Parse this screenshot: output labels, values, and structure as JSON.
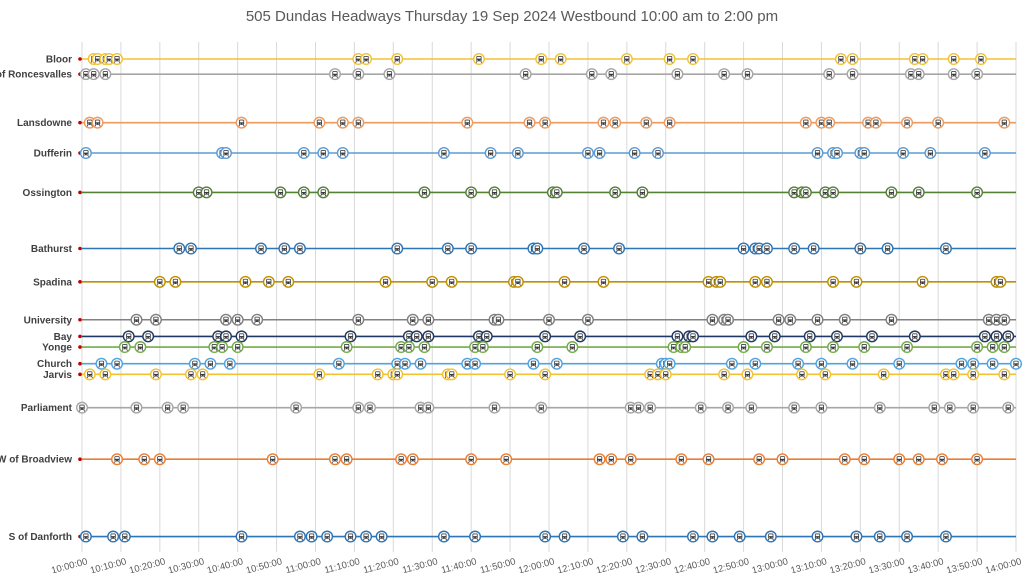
{
  "chart_data": {
    "type": "scatter",
    "title": "505 Dundas Headways Thursday 19 Sep 2024 Westbound 10:00 am to 2:00 pm",
    "x_range": [
      "10:00:00",
      "14:00:00"
    ],
    "x_ticks": [
      "10:00:00",
      "10:10:00",
      "10:20:00",
      "10:30:00",
      "10:40:00",
      "10:50:00",
      "11:00:00",
      "11:10:00",
      "11:20:00",
      "11:30:00",
      "11:40:00",
      "11:50:00",
      "12:00:00",
      "12:10:00",
      "12:20:00",
      "12:30:00",
      "12:40:00",
      "12:50:00",
      "13:00:00",
      "13:10:00",
      "13:20:00",
      "13:30:00",
      "13:40:00",
      "13:50:00",
      "14:00:00"
    ],
    "grid": "vertical",
    "marker": "streetcar",
    "series": [
      {
        "name": "Bloor",
        "level": 0.0,
        "color": "#f2c233",
        "times": [
          "10:03",
          "10:04",
          "10:06",
          "10:07",
          "10:09",
          "11:11",
          "11:13",
          "11:21",
          "11:42",
          "11:58",
          "12:03",
          "12:20",
          "12:31",
          "12:37",
          "13:15",
          "13:18",
          "13:34",
          "13:36",
          "13:44",
          "13:51"
        ]
      },
      {
        "name": "E of Roncesvalles",
        "level": 1.0,
        "color": "#a6a6a6",
        "times": [
          "10:01",
          "10:03",
          "10:06",
          "11:05",
          "11:11",
          "11:19",
          "11:54",
          "12:11",
          "12:16",
          "12:33",
          "12:45",
          "12:51",
          "13:12",
          "13:18",
          "13:33",
          "13:35",
          "13:44",
          "13:50"
        ]
      },
      {
        "name": "Lansdowne",
        "level": 4.2,
        "color": "#ed9a5e",
        "times": [
          "10:02",
          "10:04",
          "10:41",
          "11:01",
          "11:07",
          "11:11",
          "11:39",
          "11:55",
          "11:59",
          "12:14",
          "12:17",
          "12:25",
          "12:31",
          "13:06",
          "13:10",
          "13:12",
          "13:22",
          "13:24",
          "13:32",
          "13:40",
          "13:57"
        ]
      },
      {
        "name": "Dufferin",
        "level": 6.2,
        "color": "#5b9bd5",
        "times": [
          "10:01",
          "10:36",
          "10:37",
          "10:57",
          "11:02",
          "11:07",
          "11:33",
          "11:45",
          "11:52",
          "12:10",
          "12:13",
          "12:22",
          "12:28",
          "13:09",
          "13:13",
          "13:14",
          "13:20",
          "13:21",
          "13:31",
          "13:38",
          "13:52"
        ]
      },
      {
        "name": "Ossington",
        "level": 8.8,
        "color": "#548235",
        "times": [
          "10:30",
          "10:32",
          "10:51",
          "10:57",
          "11:02",
          "11:28",
          "11:40",
          "11:46",
          "12:01",
          "12:02",
          "12:17",
          "12:24",
          "13:03",
          "13:05",
          "13:06",
          "13:11",
          "13:13",
          "13:28",
          "13:35",
          "13:50"
        ]
      },
      {
        "name": "Bathurst",
        "level": 12.5,
        "color": "#2e75b6",
        "times": [
          "10:25",
          "10:28",
          "10:46",
          "10:52",
          "10:56",
          "11:21",
          "11:34",
          "11:40",
          "11:56",
          "11:57",
          "12:09",
          "12:18",
          "12:50",
          "12:53",
          "12:54",
          "12:56",
          "13:03",
          "13:08",
          "13:20",
          "13:27",
          "13:42"
        ]
      },
      {
        "name": "Spadina",
        "level": 14.7,
        "color": "#bf9000",
        "times": [
          "10:20",
          "10:24",
          "10:42",
          "10:48",
          "10:53",
          "11:18",
          "11:30",
          "11:35",
          "11:51",
          "11:52",
          "12:04",
          "12:14",
          "12:41",
          "12:43",
          "12:44",
          "12:53",
          "12:56",
          "13:13",
          "13:19",
          "13:36",
          "13:55",
          "13:56"
        ]
      },
      {
        "name": "University",
        "level": 17.2,
        "color": "#808080",
        "times": [
          "10:14",
          "10:19",
          "10:37",
          "10:40",
          "10:45",
          "11:11",
          "11:25",
          "11:29",
          "11:46",
          "11:47",
          "12:00",
          "12:10",
          "12:42",
          "12:45",
          "12:46",
          "12:59",
          "13:02",
          "13:09",
          "13:16",
          "13:28",
          "13:53",
          "13:55",
          "13:57"
        ]
      },
      {
        "name": "Bay",
        "level": 18.3,
        "color": "#203864",
        "times": [
          "10:12",
          "10:17",
          "10:35",
          "10:37",
          "10:41",
          "11:09",
          "11:24",
          "11:26",
          "11:29",
          "11:42",
          "11:44",
          "11:59",
          "12:08",
          "12:33",
          "12:36",
          "12:37",
          "12:52",
          "12:58",
          "13:07",
          "13:14",
          "13:23",
          "13:34",
          "13:52",
          "13:55",
          "13:58"
        ]
      },
      {
        "name": "Yonge",
        "level": 19.0,
        "color": "#70ad47",
        "times": [
          "10:11",
          "10:15",
          "10:34",
          "10:36",
          "10:40",
          "11:08",
          "11:22",
          "11:24",
          "11:28",
          "11:41",
          "11:43",
          "11:57",
          "12:06",
          "12:32",
          "12:34",
          "12:35",
          "12:50",
          "12:56",
          "13:06",
          "13:13",
          "13:21",
          "13:32",
          "13:50",
          "13:54",
          "13:57"
        ]
      },
      {
        "name": "Church",
        "level": 20.1,
        "color": "#4fa3e0",
        "times": [
          "10:05",
          "10:09",
          "10:29",
          "10:33",
          "10:38",
          "11:06",
          "11:21",
          "11:23",
          "11:27",
          "11:39",
          "11:41",
          "11:56",
          "12:02",
          "12:29",
          "12:30",
          "12:31",
          "12:47",
          "12:53",
          "13:04",
          "13:10",
          "13:18",
          "13:30",
          "13:46",
          "13:49",
          "13:54",
          "14:00"
        ]
      },
      {
        "name": "Jarvis",
        "level": 20.8,
        "color": "#f2c233",
        "times": [
          "10:02",
          "10:06",
          "10:19",
          "10:28",
          "10:31",
          "11:01",
          "11:16",
          "11:20",
          "11:21",
          "11:34",
          "11:35",
          "11:50",
          "11:59",
          "12:26",
          "12:28",
          "12:30",
          "12:45",
          "12:51",
          "13:05",
          "13:11",
          "13:26",
          "13:42",
          "13:44",
          "13:49",
          "13:57"
        ]
      },
      {
        "name": "Parliament",
        "level": 23.0,
        "color": "#a6a6a6",
        "times": [
          "10:00",
          "10:14",
          "10:22",
          "10:26",
          "10:55",
          "11:11",
          "11:14",
          "11:27",
          "11:29",
          "11:46",
          "11:58",
          "12:21",
          "12:23",
          "12:26",
          "12:39",
          "12:46",
          "12:52",
          "13:03",
          "13:10",
          "13:25",
          "13:39",
          "13:43",
          "13:49",
          "13:58"
        ]
      },
      {
        "name": "W of Broadview",
        "level": 26.4,
        "color": "#ed7d31",
        "times": [
          "10:09",
          "10:16",
          "10:20",
          "10:49",
          "11:05",
          "11:08",
          "11:22",
          "11:25",
          "11:40",
          "11:49",
          "12:13",
          "12:16",
          "12:21",
          "12:34",
          "12:41",
          "12:54",
          "13:00",
          "13:16",
          "13:21",
          "13:30",
          "13:35",
          "13:41",
          "13:50"
        ]
      },
      {
        "name": "S of Danforth",
        "level": 31.5,
        "color": "#2e75b6",
        "times": [
          "10:01",
          "10:08",
          "10:11",
          "10:41",
          "10:56",
          "10:59",
          "11:03",
          "11:09",
          "11:13",
          "11:17",
          "11:33",
          "11:41",
          "11:59",
          "12:04",
          "12:19",
          "12:24",
          "12:37",
          "12:42",
          "12:49",
          "12:57",
          "13:09",
          "13:19",
          "13:25",
          "13:32",
          "13:42"
        ]
      }
    ]
  }
}
